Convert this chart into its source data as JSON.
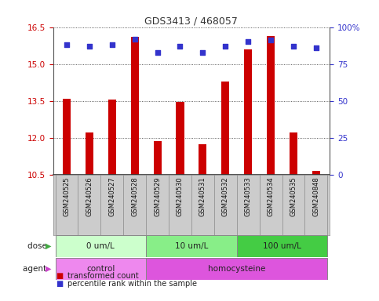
{
  "title": "GDS3413 / 468057",
  "samples": [
    "GSM240525",
    "GSM240526",
    "GSM240527",
    "GSM240528",
    "GSM240529",
    "GSM240530",
    "GSM240531",
    "GSM240532",
    "GSM240533",
    "GSM240534",
    "GSM240535",
    "GSM240848"
  ],
  "transformed_count": [
    13.6,
    12.2,
    13.55,
    16.1,
    11.85,
    13.45,
    11.75,
    14.3,
    15.6,
    16.15,
    12.2,
    10.65
  ],
  "percentile_rank": [
    88,
    87,
    88,
    92,
    83,
    87,
    83,
    87,
    90,
    91,
    87,
    86
  ],
  "ymin": 10.5,
  "ymax": 16.5,
  "yticks": [
    10.5,
    12.0,
    13.5,
    15.0,
    16.5
  ],
  "right_yticks": [
    0,
    25,
    50,
    75,
    100
  ],
  "right_ytick_labels": [
    "0",
    "25",
    "50",
    "75",
    "100%"
  ],
  "bar_color": "#cc0000",
  "dot_color": "#3333cc",
  "dot_size": 25,
  "bar_width": 0.35,
  "dose_groups": [
    {
      "label": "0 um/L",
      "start": 0,
      "end": 4,
      "color": "#ccffcc"
    },
    {
      "label": "10 um/L",
      "start": 4,
      "end": 8,
      "color": "#88ee88"
    },
    {
      "label": "100 um/L",
      "start": 8,
      "end": 12,
      "color": "#44cc44"
    }
  ],
  "agent_groups": [
    {
      "label": "control",
      "start": 0,
      "end": 4,
      "color": "#ee88ee"
    },
    {
      "label": "homocysteine",
      "start": 4,
      "end": 12,
      "color": "#dd55dd"
    }
  ],
  "legend_items": [
    {
      "label": "transformed count",
      "color": "#cc0000"
    },
    {
      "label": "percentile rank within the sample",
      "color": "#3333cc"
    }
  ],
  "row_labels": [
    "dose",
    "agent"
  ],
  "tick_color_left": "#cc0000",
  "tick_color_right": "#3333cc",
  "bg_color": "#ffffff",
  "sample_bg": "#cccccc",
  "grid_linestyle": ":"
}
